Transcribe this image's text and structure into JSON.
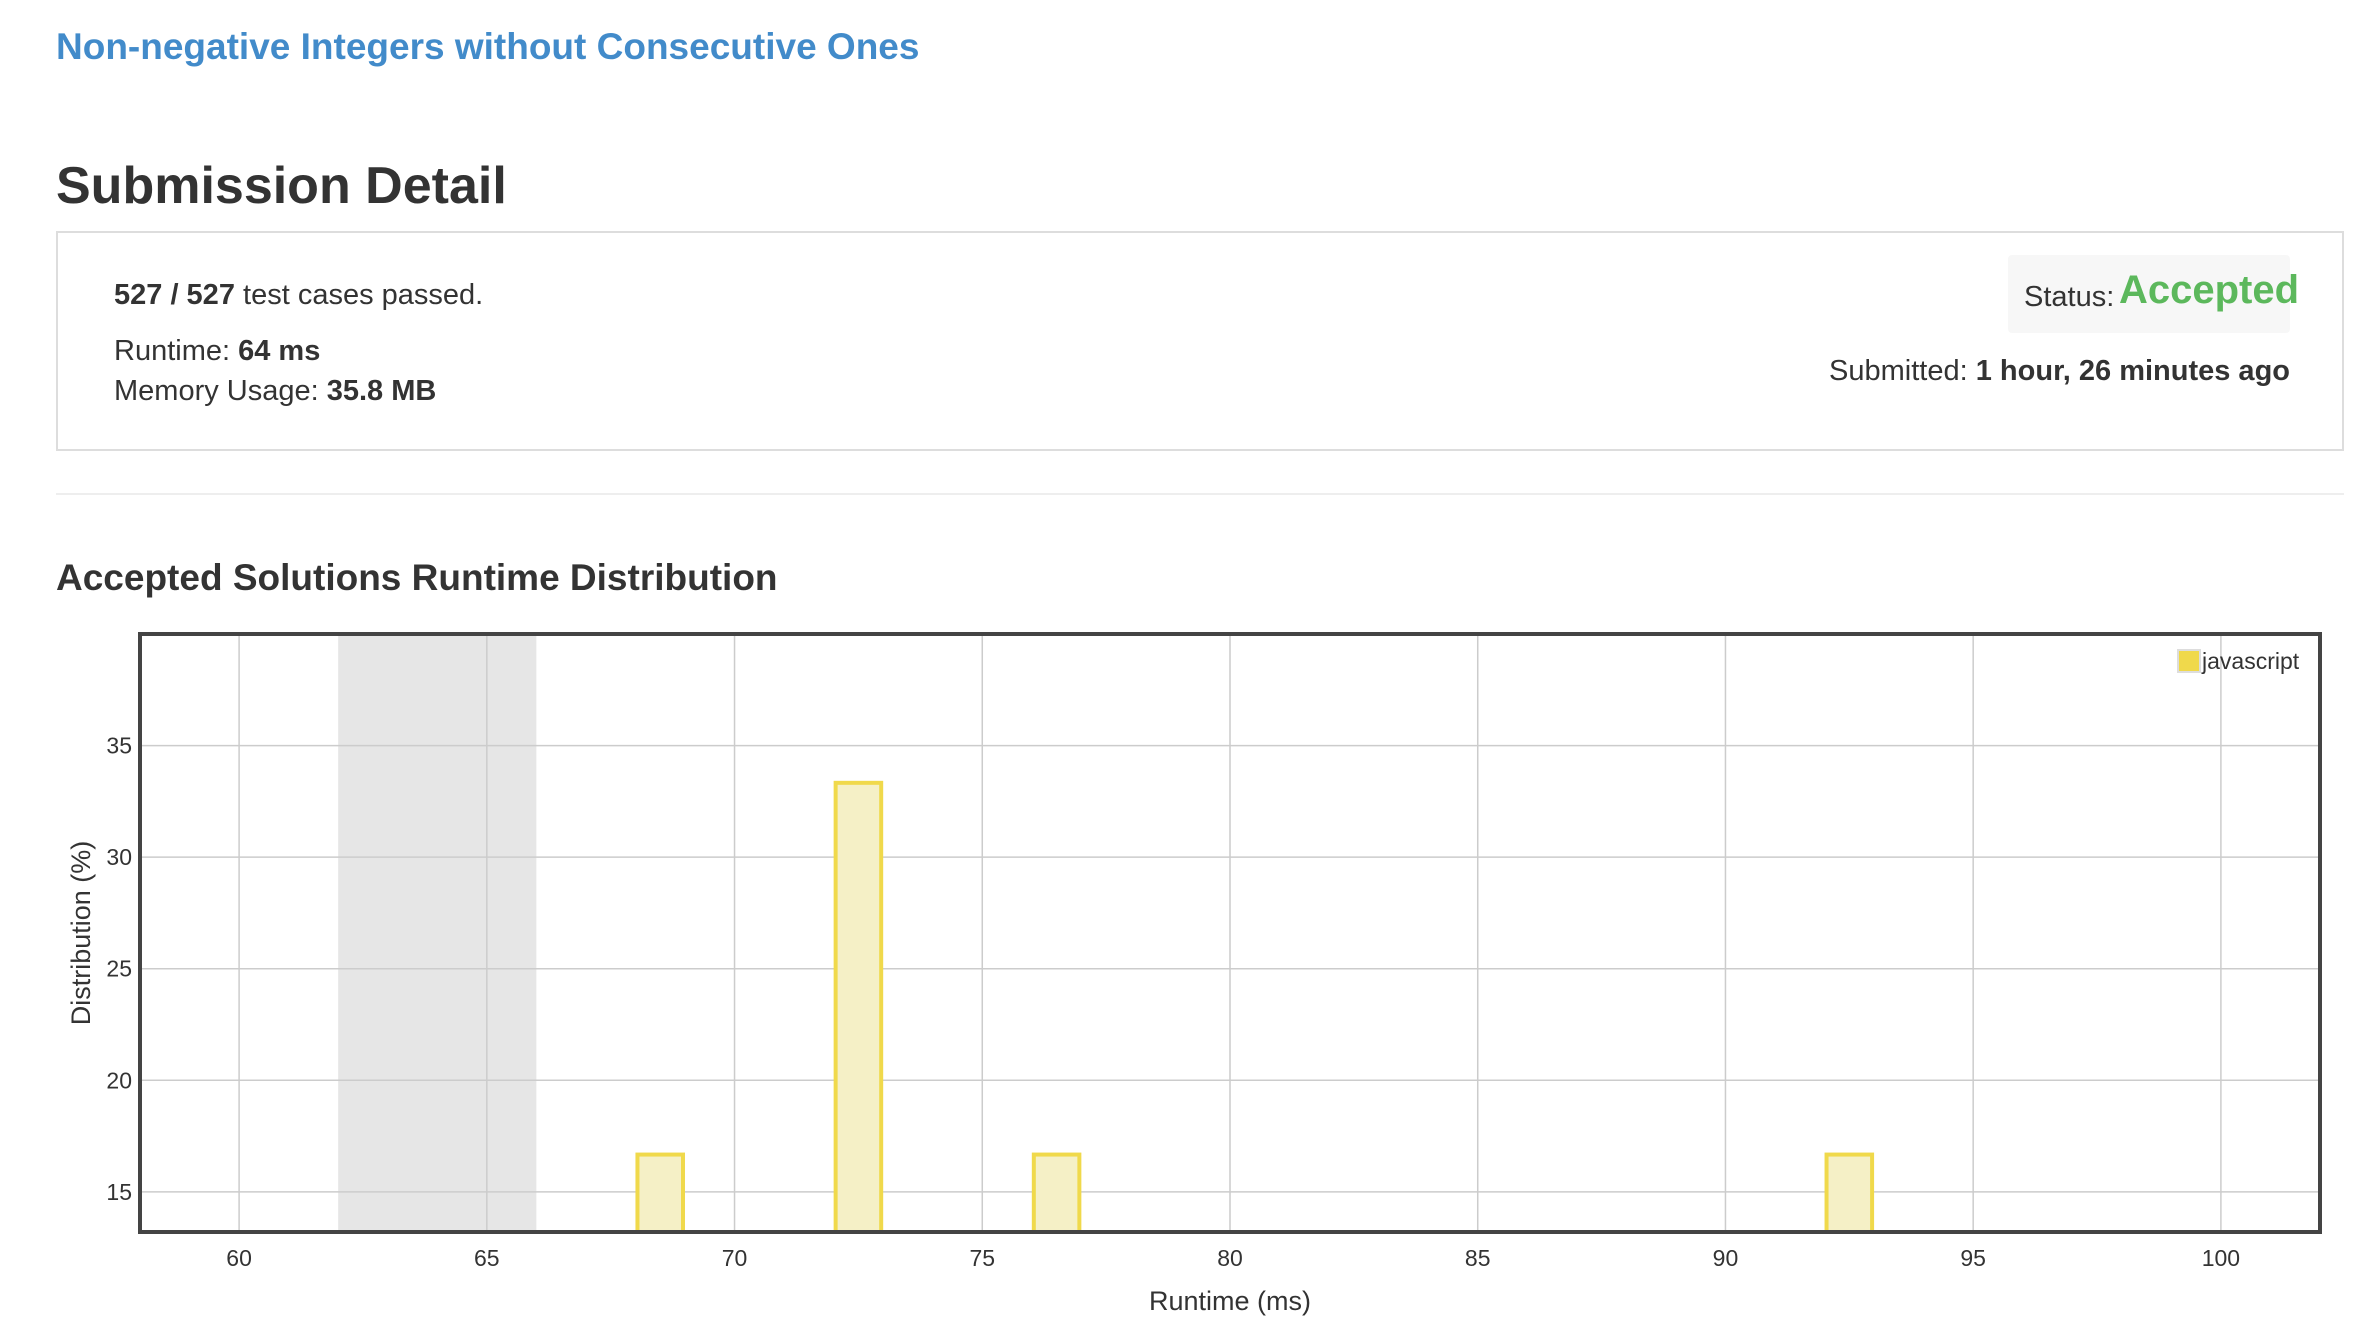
{
  "problem": {
    "title": "Non-negative Integers without Consecutive Ones"
  },
  "page": {
    "heading": "Submission Detail"
  },
  "submission": {
    "passed": "527 / 527",
    "passed_suffix": "test cases passed.",
    "runtime_label": "Runtime:",
    "runtime_value": "64 ms",
    "memory_label": "Memory Usage:",
    "memory_value": "35.8 MB",
    "status_label": "Status:",
    "status_value": "Accepted",
    "submitted_label": "Submitted:",
    "submitted_value": "1 hour, 26 minutes ago"
  },
  "colors": {
    "link": "#428bca",
    "accepted": "#5cb85c",
    "bar_fill": "#f5f0c6",
    "bar_stroke": "#f0d94b",
    "highlight": "#e6e6e6"
  },
  "distribution": {
    "title": "Accepted Solutions Runtime Distribution"
  },
  "chart_data": {
    "type": "bar",
    "title": "",
    "xlabel": "Runtime (ms)",
    "ylabel": "Distribution (%)",
    "xlim": [
      58,
      102
    ],
    "ylim": [
      13.2,
      40
    ],
    "x_ticks": [
      60,
      65,
      70,
      75,
      80,
      85,
      90,
      95,
      100
    ],
    "y_ticks": [
      15,
      20,
      25,
      30,
      35
    ],
    "grid": true,
    "legend_position": "top-right",
    "highlight_range": [
      62,
      66
    ],
    "bar_width": 1,
    "series": [
      {
        "name": "javascript",
        "x": [
          68,
          72,
          76,
          92
        ],
        "values": [
          16.67,
          33.33,
          16.67,
          16.67
        ]
      }
    ]
  }
}
